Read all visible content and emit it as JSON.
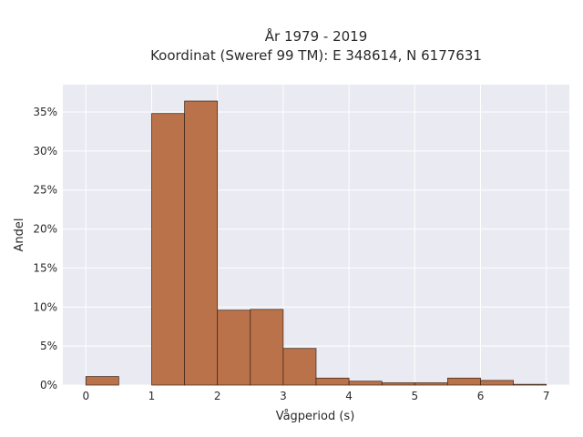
{
  "chart_data": {
    "type": "bar",
    "title": "År 1979 - 2019",
    "subtitle": "Koordinat (Sweref 99 TM): E 348614, N 6177631",
    "xlabel": "Vågperiod (s)",
    "ylabel": "Andel",
    "bin_width": 0.5,
    "bins": [
      {
        "x0": 0.0,
        "x1": 0.5,
        "value": 1.1
      },
      {
        "x0": 0.5,
        "x1": 1.0,
        "value": 0
      },
      {
        "x0": 1.0,
        "x1": 1.5,
        "value": 34.8
      },
      {
        "x0": 1.5,
        "x1": 2.0,
        "value": 36.4
      },
      {
        "x0": 2.0,
        "x1": 2.5,
        "value": 9.6
      },
      {
        "x0": 2.5,
        "x1": 3.0,
        "value": 9.7
      },
      {
        "x0": 3.0,
        "x1": 3.5,
        "value": 4.7
      },
      {
        "x0": 3.5,
        "x1": 4.0,
        "value": 0.9
      },
      {
        "x0": 4.0,
        "x1": 4.5,
        "value": 0.5
      },
      {
        "x0": 4.5,
        "x1": 5.0,
        "value": 0.3
      },
      {
        "x0": 5.0,
        "x1": 5.5,
        "value": 0.3
      },
      {
        "x0": 5.5,
        "x1": 6.0,
        "value": 0.9
      },
      {
        "x0": 6.0,
        "x1": 6.5,
        "value": 0.6
      },
      {
        "x0": 6.5,
        "x1": 7.0,
        "value": 0.1
      }
    ],
    "xlim": [
      -0.35,
      7.35
    ],
    "ylim": [
      0,
      38.5
    ],
    "x_ticks": [
      0,
      1,
      2,
      3,
      4,
      5,
      6,
      7
    ],
    "y_ticks": [
      0,
      5,
      10,
      15,
      20,
      25,
      30,
      35
    ],
    "y_tick_labels": [
      "0%",
      "5%",
      "10%",
      "15%",
      "20%",
      "25%",
      "30%",
      "35%"
    ],
    "grid": true,
    "colors": {
      "bar_fill": "#b9724a",
      "bar_edge": "#3b2416",
      "plot_background": "#eaeaf2",
      "grid": "#ffffff"
    }
  }
}
